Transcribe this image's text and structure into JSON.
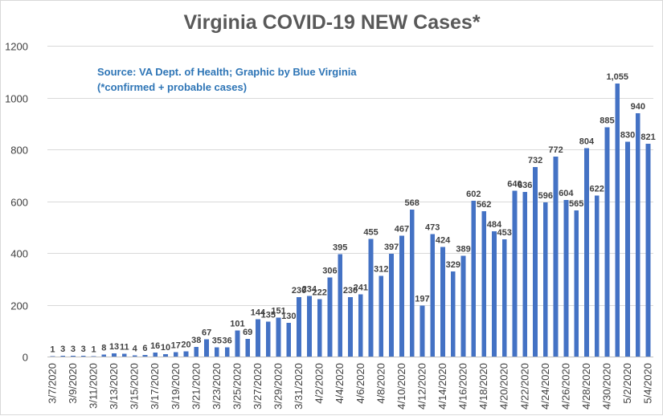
{
  "chart_data": {
    "type": "bar",
    "title": "Virginia COVID-19 NEW Cases*",
    "annotation_lines": [
      "Source: VA Dept. of Health; Graphic by Blue Virginia",
      "(*confirmed + probable cases)"
    ],
    "xlabel": "",
    "ylabel": "",
    "ylim": [
      0,
      1200
    ],
    "yticks": [
      "0",
      "200",
      "400",
      "600",
      "800",
      "1000",
      "1200"
    ],
    "grid": true,
    "legend": "none",
    "bar_color": "#4472c4",
    "categories": [
      "3/7/2020",
      "3/8/2020",
      "3/9/2020",
      "3/10/2020",
      "3/11/2020",
      "3/12/2020",
      "3/13/2020",
      "3/14/2020",
      "3/15/2020",
      "3/16/2020",
      "3/17/2020",
      "3/18/2020",
      "3/19/2020",
      "3/20/2020",
      "3/21/2020",
      "3/22/2020",
      "3/23/2020",
      "3/24/2020",
      "3/25/2020",
      "3/26/2020",
      "3/27/2020",
      "3/28/2020",
      "3/29/2020",
      "3/30/2020",
      "3/31/2020",
      "4/1/2020",
      "4/2/2020",
      "4/3/2020",
      "4/4/2020",
      "4/5/2020",
      "4/6/2020",
      "4/7/2020",
      "4/8/2020",
      "4/9/2020",
      "4/10/2020",
      "4/11/2020",
      "4/12/2020",
      "4/13/2020",
      "4/14/2020",
      "4/15/2020",
      "4/16/2020",
      "4/17/2020",
      "4/18/2020",
      "4/19/2020",
      "4/20/2020",
      "4/21/2020",
      "4/22/2020",
      "4/23/2020",
      "4/24/2020",
      "4/25/2020",
      "4/26/2020",
      "4/27/2020",
      "4/28/2020",
      "4/29/2020",
      "4/30/2020",
      "5/1/2020",
      "5/2/2020",
      "5/3/2020",
      "5/4/2020"
    ],
    "tick_labels": [
      "3/7/2020",
      "",
      "3/9/2020",
      "",
      "3/11/2020",
      "",
      "3/13/2020",
      "",
      "3/15/2020",
      "",
      "3/17/2020",
      "",
      "3/19/2020",
      "",
      "3/21/2020",
      "",
      "3/23/2020",
      "",
      "3/25/2020",
      "",
      "3/27/2020",
      "",
      "3/29/2020",
      "",
      "3/31/2020",
      "",
      "4/2/2020",
      "",
      "4/4/2020",
      "",
      "4/6/2020",
      "",
      "4/8/2020",
      "",
      "4/10/2020",
      "",
      "4/12/2020",
      "",
      "4/14/2020",
      "",
      "4/16/2020",
      "",
      "4/18/2020",
      "",
      "4/20/2020",
      "",
      "4/22/2020",
      "",
      "4/24/2020",
      "",
      "4/26/2020",
      "",
      "4/28/2020",
      "",
      "4/30/2020",
      "",
      "5/2/2020",
      "",
      "5/4/2020"
    ],
    "values": [
      1,
      3,
      3,
      3,
      1,
      8,
      13,
      11,
      4,
      6,
      16,
      10,
      17,
      20,
      38,
      67,
      35,
      36,
      101,
      69,
      144,
      135,
      151,
      130,
      230,
      234,
      222,
      306,
      395,
      230,
      241,
      455,
      312,
      397,
      467,
      568,
      197,
      473,
      424,
      329,
      389,
      602,
      562,
      484,
      453,
      640,
      636,
      732,
      596,
      772,
      604,
      565,
      804,
      622,
      885,
      1055,
      830,
      940,
      821
    ],
    "data_labels": [
      "1",
      "3",
      "3",
      "3",
      "1",
      "8",
      "13",
      "11",
      "4",
      "6",
      "16",
      "10",
      "17",
      "20",
      "38",
      "67",
      "35",
      "36",
      "101",
      "69",
      "144",
      "135",
      "151",
      "130",
      "230",
      "234",
      "222",
      "306",
      "395",
      "230",
      "241",
      "455",
      "312",
      "397",
      "467",
      "568",
      "197",
      "473",
      "424",
      "329",
      "389",
      "602",
      "562",
      "484",
      "453",
      "640",
      "636",
      "732",
      "596",
      "772",
      "604",
      "565",
      "804",
      "622",
      "885",
      "1,055",
      "830",
      "940",
      "821"
    ]
  }
}
